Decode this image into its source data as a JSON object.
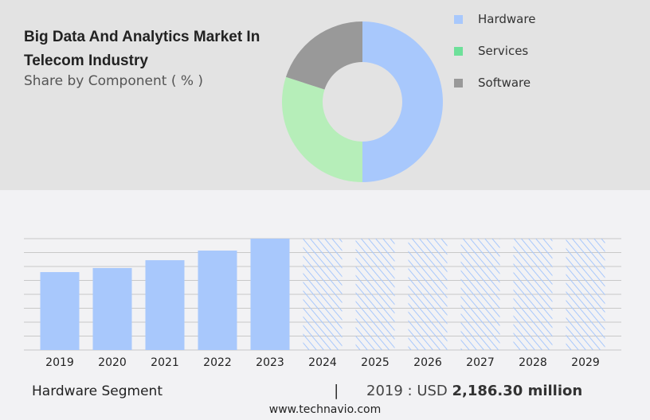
{
  "header": {
    "title": "Big Data And Analytics Market In Telecom Industry",
    "subtitle": "Share by Component ( % )"
  },
  "colors": {
    "hardware": "#a8c8fc",
    "services": "#b6eeb9",
    "services_legend": "#6ee09a",
    "software": "#999999",
    "grid": "#c8c8c8"
  },
  "chart_data": [
    {
      "type": "pie",
      "subtype": "donut",
      "title": "Big Data And Analytics Market In Telecom Industry",
      "subtitle": "Share by Component ( % )",
      "legend_position": "right",
      "series": [
        {
          "name": "Hardware",
          "value": 50
        },
        {
          "name": "Services",
          "value": 30
        },
        {
          "name": "Software",
          "value": 20
        }
      ]
    },
    {
      "type": "bar",
      "categories": [
        "2019",
        "2020",
        "2021",
        "2022",
        "2023",
        "2024",
        "2025",
        "2026",
        "2027",
        "2028",
        "2029"
      ],
      "values": [
        2186.3,
        2300,
        2520,
        2790,
        3125,
        null,
        null,
        null,
        null,
        null,
        null
      ],
      "forecast_categories": [
        "2024",
        "2025",
        "2026",
        "2027",
        "2028",
        "2029"
      ],
      "grid": true,
      "ylim": [
        0,
        3125
      ],
      "series_name": "Hardware Segment"
    }
  ],
  "footer": {
    "segment": "Hardware Segment",
    "separator": "|",
    "value_prefix": "2019 : USD ",
    "value_bold": "2,186.30 million",
    "site": "www.technavio.com"
  }
}
